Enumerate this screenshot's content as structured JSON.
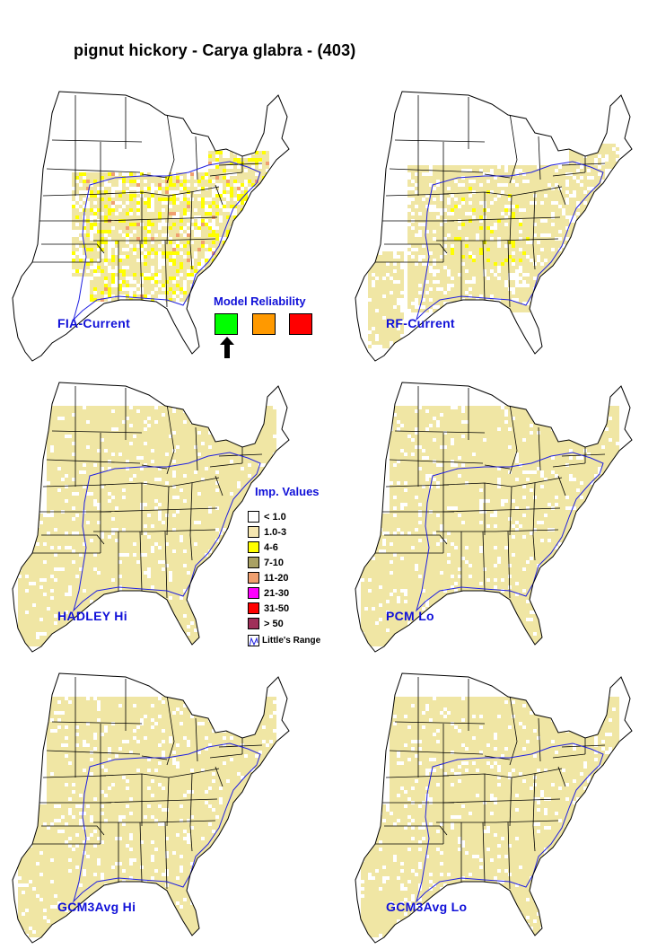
{
  "title": "pignut hickory - Carya glabra - (403)",
  "maps": [
    {
      "label": "FIA-Current",
      "fill": "#f0e6a4",
      "hotspot": "#ffff00",
      "spread": "current-fia"
    },
    {
      "label": "RF-Current",
      "fill": "#f0e6a4",
      "hotspot": "#ffff00",
      "spread": "current-rf"
    },
    {
      "label": "HADLEY Hi",
      "fill": "#f0e6a4",
      "hotspot": "#ffff00",
      "spread": "future"
    },
    {
      "label": "PCM Lo",
      "fill": "#f0e6a4",
      "hotspot": "#ffff00",
      "spread": "future"
    },
    {
      "label": "GCM3Avg Hi",
      "fill": "#f0e6a4",
      "hotspot": "#ffff00",
      "spread": "future"
    },
    {
      "label": "GCM3Avg Lo",
      "fill": "#f0e6a4",
      "hotspot": "#ffff00",
      "spread": "future"
    }
  ],
  "model_reliability": {
    "title": "Model Reliability",
    "levels": [
      {
        "level": "high",
        "color": "#00ff00"
      },
      {
        "level": "medium",
        "color": "#ff9900"
      },
      {
        "level": "low",
        "color": "#ff0000"
      }
    ],
    "selected": "high"
  },
  "importance_values": {
    "title": "Imp. Values",
    "classes": [
      {
        "label": "< 1.0",
        "color": "#ffffff"
      },
      {
        "label": "1.0-3",
        "color": "#f5e6b0"
      },
      {
        "label": "4-6",
        "color": "#ffff00"
      },
      {
        "label": "7-10",
        "color": "#a9a164"
      },
      {
        "label": "11-20",
        "color": "#f0a070"
      },
      {
        "label": "21-30",
        "color": "#ff00ff"
      },
      {
        "label": "31-50",
        "color": "#ff0000"
      },
      {
        "label": "> 50",
        "color": "#a0305a"
      }
    ],
    "range_label": "Little's Range",
    "range_color": "#2020e0"
  }
}
